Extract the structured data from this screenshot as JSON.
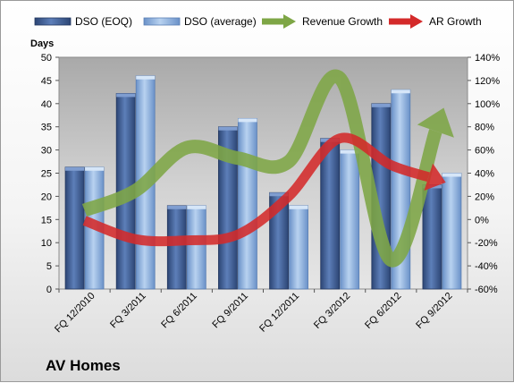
{
  "company": "AV Homes",
  "chart_data": {
    "type": "bar",
    "categories": [
      "FQ 12/2010",
      "FQ 3/2011",
      "FQ 6/2011",
      "FQ 9/2011",
      "FQ 12/2011",
      "FQ 3/2012",
      "FQ 6/2012",
      "FQ 9/2012"
    ],
    "series": [
      {
        "name": "DSO (EOQ)",
        "type": "bar",
        "axis": "left",
        "color": "#3f5f99",
        "values": [
          26.3,
          42.2,
          18.0,
          35.0,
          20.8,
          32.5,
          40.0,
          22.5
        ]
      },
      {
        "name": "DSO (average)",
        "type": "bar",
        "axis": "left",
        "color": "#8fb4e3",
        "values": [
          26.3,
          46.0,
          18.0,
          36.8,
          18.0,
          30.0,
          43.0,
          25.0
        ]
      },
      {
        "name": "Revenue Growth",
        "type": "line",
        "axis": "right",
        "color": "#7ea646",
        "values": [
          0.08,
          0.25,
          0.62,
          0.53,
          0.5,
          1.22,
          -0.35,
          0.92
        ]
      },
      {
        "name": "AR Growth",
        "type": "line",
        "axis": "right",
        "color": "#d42a2a",
        "values": [
          -0.01,
          -0.17,
          -0.18,
          -0.13,
          0.2,
          0.7,
          0.47,
          0.33
        ]
      }
    ],
    "yleft": {
      "label": "Days",
      "min": 0,
      "max": 50,
      "step": 5
    },
    "yright": {
      "min": -0.6,
      "max": 1.4,
      "step": 0.2,
      "format": "percent"
    },
    "legend": "top",
    "grid": false
  }
}
